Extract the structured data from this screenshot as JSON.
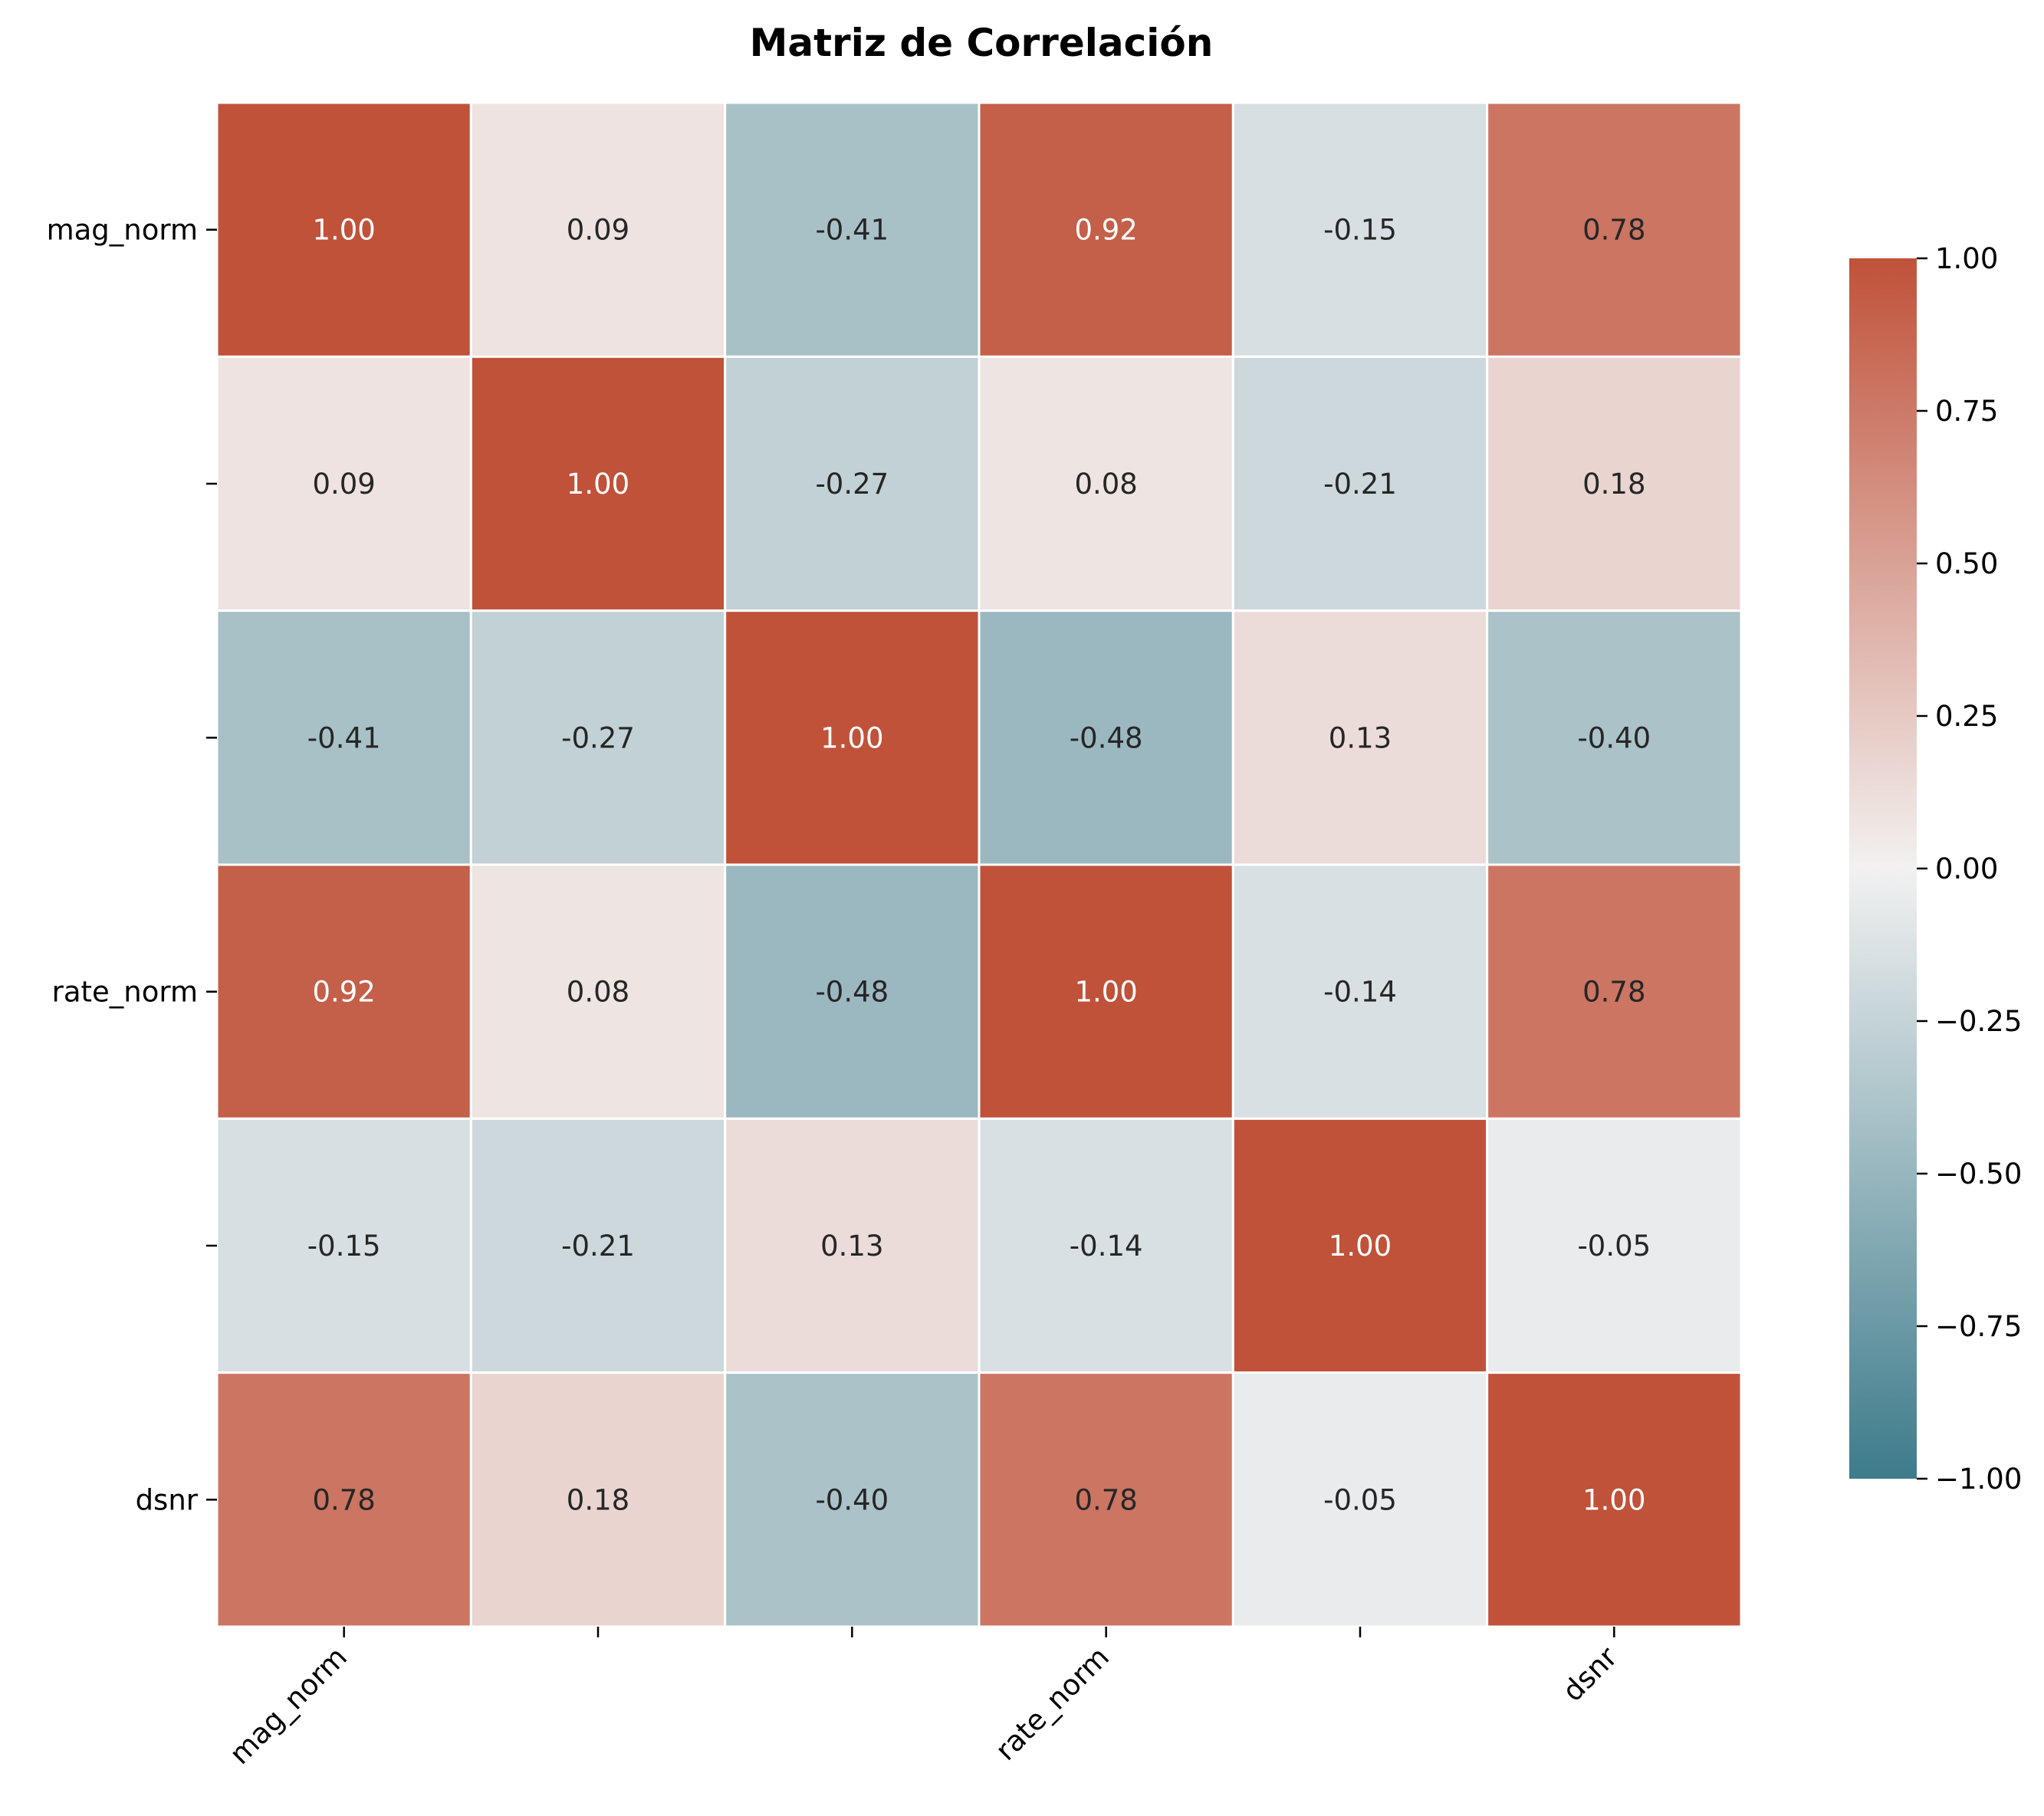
{
  "chart_data": {
    "type": "heatmap",
    "title": "Matriz de Correlación",
    "xlabel": "",
    "ylabel": "",
    "x_tick_labels": [
      "mag_norm",
      "",
      "",
      "rate_norm",
      "",
      "dsnr"
    ],
    "y_tick_labels": [
      "mag_norm",
      "",
      "",
      "rate_norm",
      "",
      "dsnr"
    ],
    "matrix": [
      [
        1.0,
        0.09,
        -0.41,
        0.92,
        -0.15,
        0.78
      ],
      [
        0.09,
        1.0,
        -0.27,
        0.08,
        -0.21,
        0.18
      ],
      [
        -0.41,
        -0.27,
        1.0,
        -0.48,
        0.13,
        -0.4
      ],
      [
        0.92,
        0.08,
        -0.48,
        1.0,
        -0.14,
        0.78
      ],
      [
        -0.15,
        -0.21,
        0.13,
        -0.14,
        1.0,
        -0.05
      ],
      [
        0.78,
        0.18,
        -0.4,
        0.78,
        -0.05,
        1.0
      ]
    ],
    "value_format": "0.00",
    "colorbar": {
      "range": [
        -1.0,
        1.0
      ],
      "ticks": [
        "1.00",
        "0.75",
        "0.50",
        "0.25",
        "0.00",
        "−0.25",
        "−0.50",
        "−0.75",
        "−1.00"
      ],
      "tick_values": [
        1.0,
        0.75,
        0.5,
        0.25,
        0.0,
        -0.25,
        -0.5,
        -0.75,
        -1.0
      ],
      "colors": {
        "negative": "#3d7b8b",
        "center": "#f2f1f1",
        "positive": "#c0523a"
      }
    },
    "grid": false,
    "cell_separator_color": "#ffffff"
  }
}
